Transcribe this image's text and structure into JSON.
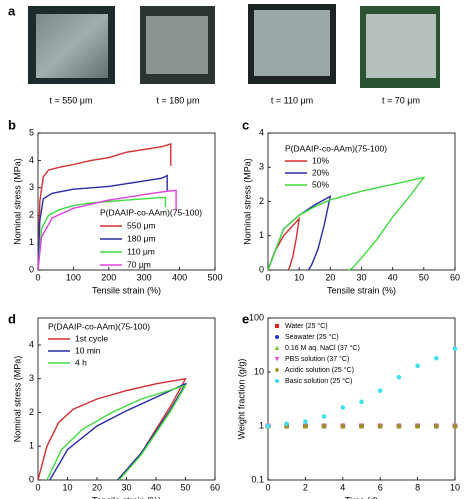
{
  "photos": {
    "label": "a",
    "captions": [
      "t = 550 μm",
      "t = 180 μm",
      "t = 110 μm",
      "t = 70 μm"
    ]
  },
  "chart_data": [
    {
      "type": "line",
      "label": "b",
      "x_label": "Tensile strain (%)",
      "y_label": "Nominal stress (MPa)",
      "xlim": [
        0,
        500
      ],
      "xticks": [
        0,
        100,
        200,
        300,
        400,
        500
      ],
      "ylim": [
        0,
        5
      ],
      "yticks": [
        0,
        1,
        2,
        3,
        4,
        5
      ],
      "legend_title": "P(DAAIP-co-AAm)(75-100)",
      "series": [
        {
          "name": "550 μm",
          "color": "#d62f2f",
          "x": [
            0,
            5,
            15,
            30,
            60,
            100,
            150,
            200,
            250,
            300,
            350,
            375,
            375
          ],
          "values": [
            0,
            2.5,
            3.4,
            3.65,
            3.75,
            3.85,
            4.0,
            4.1,
            4.3,
            4.4,
            4.5,
            4.6,
            3.8
          ]
        },
        {
          "name": "180 μm",
          "color": "#2b2ba8",
          "x": [
            0,
            5,
            15,
            40,
            100,
            150,
            200,
            250,
            300,
            350,
            365,
            365
          ],
          "values": [
            0,
            1.8,
            2.6,
            2.8,
            2.95,
            3.0,
            3.05,
            3.15,
            3.25,
            3.35,
            3.45,
            2.9
          ]
        },
        {
          "name": "110 μm",
          "color": "#3fdc3f",
          "x": [
            0,
            10,
            30,
            60,
            100,
            150,
            200,
            250,
            300,
            355,
            360,
            360
          ],
          "values": [
            0,
            1.5,
            2.0,
            2.2,
            2.35,
            2.45,
            2.5,
            2.55,
            2.6,
            2.65,
            2.65,
            2.3
          ]
        },
        {
          "name": "70 μm",
          "color": "#e040e0",
          "x": [
            0,
            10,
            40,
            100,
            150,
            200,
            250,
            300,
            350,
            385,
            390,
            390
          ],
          "values": [
            0,
            1.2,
            1.9,
            2.25,
            2.4,
            2.55,
            2.65,
            2.75,
            2.85,
            2.9,
            2.9,
            2.2
          ]
        }
      ]
    },
    {
      "type": "line",
      "label": "c",
      "x_label": "Tensile strain (%)",
      "y_label": "Nominal stress (MPa)",
      "xlim": [
        0,
        60
      ],
      "xticks": [
        0,
        10,
        20,
        30,
        40,
        50,
        60
      ],
      "ylim": [
        0,
        4
      ],
      "yticks": [
        0,
        1,
        2,
        3,
        4
      ],
      "legend_title": "P(DAAIP-co-AAm)(75-100)",
      "series": [
        {
          "name": "10%",
          "color": "#d62f2f",
          "x": [
            0,
            2,
            5,
            8,
            10,
            9,
            8,
            7,
            6.5
          ],
          "values": [
            0,
            0.5,
            1.0,
            1.3,
            1.5,
            0.9,
            0.4,
            0.1,
            0
          ]
        },
        {
          "name": "20%",
          "color": "#2b2ba8",
          "x": [
            0,
            5,
            10,
            15,
            20,
            18,
            16,
            14,
            13
          ],
          "values": [
            0,
            1.2,
            1.6,
            1.9,
            2.15,
            1.3,
            0.6,
            0.15,
            0
          ]
        },
        {
          "name": "50%",
          "color": "#3fdc3f",
          "x": [
            0,
            5,
            10,
            15,
            20,
            30,
            40,
            50,
            45,
            40,
            35,
            30,
            27,
            26
          ],
          "values": [
            0,
            1.2,
            1.6,
            1.85,
            2.05,
            2.3,
            2.5,
            2.7,
            2.1,
            1.55,
            0.9,
            0.35,
            0.05,
            0
          ]
        }
      ]
    },
    {
      "type": "line",
      "label": "d",
      "x_label": "Tensile strain (%)",
      "y_label": "Nominal stress (MPa)",
      "xlim": [
        0,
        60
      ],
      "xticks": [
        0,
        10,
        20,
        30,
        40,
        50,
        60
      ],
      "ylim": [
        0,
        4.8
      ],
      "yticks": [
        0,
        1,
        2,
        3,
        4
      ],
      "legend_title": "P(DAAIP-co-AAm)(75-100)",
      "series": [
        {
          "name": "1st cycle",
          "color": "#d62f2f",
          "x": [
            0,
            3,
            7,
            12,
            20,
            30,
            40,
            50,
            45,
            40,
            35,
            30,
            27
          ],
          "values": [
            0,
            1,
            1.7,
            2.1,
            2.4,
            2.65,
            2.85,
            3.0,
            2.2,
            1.5,
            0.8,
            0.3,
            0
          ]
        },
        {
          "name": "10 min",
          "color": "#2b2ba8",
          "x": [
            4,
            10,
            20,
            30,
            40,
            50,
            45,
            40,
            35,
            30,
            27
          ],
          "values": [
            0,
            0.9,
            1.6,
            2.05,
            2.45,
            2.85,
            2.1,
            1.45,
            0.8,
            0.3,
            0
          ]
        },
        {
          "name": "4 h",
          "color": "#3fdc3f",
          "x": [
            3,
            8,
            15,
            25,
            35,
            50,
            45,
            40,
            35,
            30,
            27.5
          ],
          "values": [
            0,
            0.9,
            1.5,
            2.0,
            2.4,
            2.8,
            2.05,
            1.4,
            0.75,
            0.25,
            0
          ]
        }
      ]
    },
    {
      "type": "scatter",
      "label": "e",
      "x_label": "Time (d)",
      "y_label": "Weight fraction (g/g)",
      "log_y": true,
      "xlim": [
        0,
        10
      ],
      "xticks": [
        0,
        2,
        4,
        6,
        8,
        10
      ],
      "ylim": [
        0.1,
        100
      ],
      "yticks": [
        0.1,
        1,
        10,
        100
      ],
      "x": [
        0,
        1,
        2,
        3,
        4,
        5,
        6,
        7,
        8,
        9,
        10
      ],
      "series": [
        {
          "name": "Water (25 °C)",
          "color": "#e02020",
          "marker": "square",
          "values": [
            1,
            1,
            1,
            1,
            1,
            1,
            1,
            1,
            1,
            1,
            1
          ]
        },
        {
          "name": "Seawater (25 °C)",
          "color": "#2030c0",
          "marker": "circle",
          "values": [
            1,
            1,
            1,
            1,
            1,
            1,
            1,
            1,
            1,
            1,
            1
          ]
        },
        {
          "name": "0.16 M aq. NaCl (37 °C)",
          "color": "#70c030",
          "marker": "triangle-up",
          "values": [
            1,
            1,
            1,
            1,
            1,
            1,
            1,
            1,
            1,
            1,
            1
          ]
        },
        {
          "name": "PBS solution (37 °C)",
          "color": "#e050e0",
          "marker": "triangle-down",
          "values": [
            1,
            1,
            1,
            1,
            1,
            1,
            1,
            1,
            1,
            1,
            1
          ]
        },
        {
          "name": "Acidic solution (25 °C)",
          "color": "#a09020",
          "marker": "diamond",
          "values": [
            1,
            1,
            1,
            1,
            1,
            1,
            1,
            1,
            1,
            1,
            1
          ]
        },
        {
          "name": "Basic solution (25 °C)",
          "color": "#40e0f0",
          "marker": "circle",
          "values": [
            1,
            1.1,
            1.2,
            1.5,
            2.2,
            2.8,
            4.5,
            8,
            13,
            18,
            27
          ]
        }
      ]
    }
  ]
}
